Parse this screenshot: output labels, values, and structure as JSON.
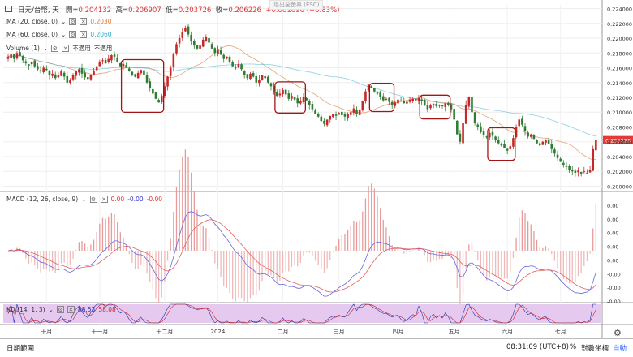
{
  "header": {
    "symbol": "日元/台幣, 天",
    "open_label": "開",
    "open": "0.204132",
    "high_label": "高",
    "high": "0.206907",
    "low_label": "低",
    "low": "0.203726",
    "close_label": "收",
    "close": "0.206226",
    "change": "+0.001696 (+0.83%)",
    "esc_hint": "退出全螢幕 (ESC)"
  },
  "indicators": [
    {
      "label": "MA (20, close, 0)",
      "value": "0.2030",
      "color": "#e07b39"
    },
    {
      "label": "MA (60, close, 0)",
      "value": "0.2060",
      "color": "#33aacc"
    },
    {
      "label": "Volume (1)",
      "value": "不適用",
      "value2": "不適用",
      "color": "#555555"
    }
  ],
  "macd_header": {
    "label": "MACD (12, 26, close, 9)",
    "v1": "0.00",
    "v2": "-0.00",
    "v3": "-0.00"
  },
  "kd_header": {
    "label": "KD (14, 1, 3)",
    "k": "88.53",
    "d": "58.08"
  },
  "bottom": {
    "date_range": "日期範圍",
    "time": "08:31:09 (UTC+8)",
    "percent": "%",
    "log": "對數坐標",
    "auto": "自動"
  },
  "chart_data": [
    {
      "type": "candlestick",
      "title": "日元/台幣, 天",
      "x_tick_labels": [
        "十月",
        "十一月",
        "十二月",
        "2024",
        "二月",
        "三月",
        "四月",
        "五月",
        "六月",
        "七月"
      ],
      "y_tick_labels": [
        "0.224000",
        "0.222000",
        "0.220000",
        "0.218000",
        "0.216000",
        "0.214000",
        "0.212000",
        "0.210000",
        "0.208000",
        "0.206000",
        "0.204000",
        "0.202000",
        "0.200000"
      ],
      "ylim": [
        0.1995,
        0.2245
      ],
      "last_price": "0.206226",
      "series_approx_closes": [
        0.2175,
        0.2178,
        0.2172,
        0.218,
        0.2176,
        0.217,
        0.2166,
        0.2163,
        0.2168,
        0.2162,
        0.2158,
        0.2155,
        0.216,
        0.2157,
        0.215,
        0.2152,
        0.2146,
        0.215,
        0.2155,
        0.2148,
        0.214,
        0.2143,
        0.215,
        0.2155,
        0.2158,
        0.2152,
        0.2147,
        0.2145,
        0.215,
        0.2155,
        0.2162,
        0.2168,
        0.217,
        0.2166,
        0.2172,
        0.2177,
        0.2175,
        0.2168,
        0.2162,
        0.2165,
        0.216,
        0.2155,
        0.215,
        0.2148,
        0.2153,
        0.2157,
        0.215,
        0.214,
        0.2132,
        0.2125,
        0.2118,
        0.2113,
        0.2122,
        0.2135,
        0.2148,
        0.216,
        0.2178,
        0.2192,
        0.22,
        0.2208,
        0.2214,
        0.2205,
        0.2196,
        0.219,
        0.2186,
        0.219,
        0.2198,
        0.2202,
        0.2194,
        0.2186,
        0.218,
        0.2184,
        0.2178,
        0.2172,
        0.2175,
        0.2168,
        0.2162,
        0.216,
        0.2165,
        0.2158,
        0.215,
        0.2146,
        0.2152,
        0.2148,
        0.214,
        0.2144,
        0.215,
        0.2146,
        0.214,
        0.2135,
        0.2128,
        0.2122,
        0.2125,
        0.213,
        0.2124,
        0.2118,
        0.2122,
        0.2117,
        0.2112,
        0.2115,
        0.212,
        0.2116,
        0.211,
        0.2104,
        0.2098,
        0.2094,
        0.2088,
        0.2084,
        0.209,
        0.2095,
        0.2097,
        0.2095,
        0.2099,
        0.2096,
        0.2094,
        0.2098,
        0.21,
        0.2105,
        0.2098,
        0.2103,
        0.2115,
        0.2128,
        0.2137,
        0.2133,
        0.2128,
        0.2125,
        0.212,
        0.2116,
        0.2118,
        0.2114,
        0.211,
        0.2113,
        0.2117,
        0.2115,
        0.2112,
        0.2114,
        0.2117,
        0.2118,
        0.2116,
        0.2119,
        0.2115,
        0.211,
        0.2104,
        0.2109,
        0.2111,
        0.2108,
        0.211,
        0.2108,
        0.2112,
        0.2109,
        0.2104,
        0.209,
        0.207,
        0.206,
        0.2085,
        0.211,
        0.212,
        0.21,
        0.2085,
        0.208,
        0.2073,
        0.2069,
        0.2066,
        0.2072,
        0.2068,
        0.2063,
        0.2058,
        0.2055,
        0.2051,
        0.2048,
        0.2054,
        0.2065,
        0.208,
        0.209,
        0.2083,
        0.2074,
        0.2067,
        0.207,
        0.2064,
        0.2058,
        0.2055,
        0.206,
        0.2063,
        0.2057,
        0.205,
        0.2044,
        0.2038,
        0.2033,
        0.2029,
        0.2026,
        0.2022,
        0.202,
        0.2018,
        0.2021,
        0.2017,
        0.202,
        0.2018,
        0.2022,
        0.205,
        0.2062
      ]
    },
    {
      "type": "line",
      "title": "MACD (12, 26, close, 9)",
      "y_tick_labels": [
        "0.00",
        "0.00",
        "0.00",
        "0.00",
        "0.00",
        "-0.00",
        "-0.00",
        "-0.00"
      ],
      "series": [
        {
          "name": "MACD",
          "color": "#6666dd"
        },
        {
          "name": "Signal",
          "color": "#e06060"
        },
        {
          "name": "Histogram",
          "color": "#e89a9a"
        }
      ]
    },
    {
      "type": "line",
      "title": "KD (14, 1, 3)",
      "series": [
        {
          "name": "K",
          "value": "88.53",
          "color": "#2233aa"
        },
        {
          "name": "D",
          "value": "58.08",
          "color": "#cc2222"
        }
      ]
    }
  ]
}
